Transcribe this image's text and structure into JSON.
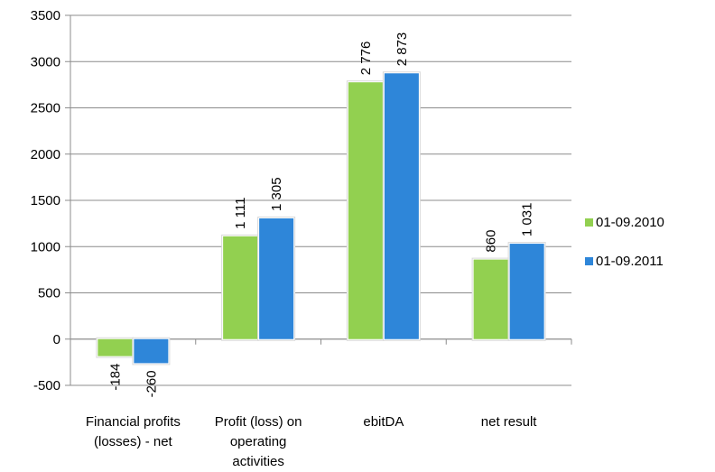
{
  "chart_data": {
    "type": "bar",
    "title": "",
    "xlabel": "",
    "ylabel": "",
    "ylim": [
      -500,
      3500
    ],
    "ytick_step": 500,
    "grid": true,
    "legend_position": "right",
    "categories": [
      [
        "Financial profits",
        "(losses) - net"
      ],
      [
        "Profit (loss) on",
        "operating",
        "activities"
      ],
      [
        "ebitDA"
      ],
      [
        "net result"
      ]
    ],
    "series": [
      {
        "name": "01-09.2010",
        "color": "#92d050",
        "values": [
          -184,
          1111,
          2776,
          860
        ],
        "labels": [
          "-184",
          "1 111",
          "2 776",
          "860"
        ]
      },
      {
        "name": "01-09.2011",
        "color": "#2e86d9",
        "values": [
          -260,
          1305,
          2873,
          1031
        ],
        "labels": [
          "-260",
          "1 305",
          "2 873",
          "1 031"
        ]
      }
    ]
  }
}
